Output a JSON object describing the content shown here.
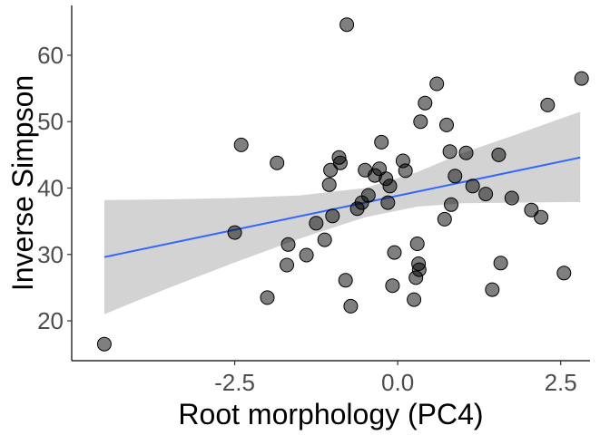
{
  "chart_data": {
    "type": "scatter",
    "title": "",
    "xlabel": "Root morphology (PC4)",
    "ylabel": "Inverse Simpson",
    "xlim": [
      -5.0,
      2.95
    ],
    "ylim": [
      14.0,
      67.5
    ],
    "x_ticks": [
      -2.5,
      0.0,
      2.5
    ],
    "x_tick_labels": [
      "-2.5",
      "0.0",
      "2.5"
    ],
    "y_ticks": [
      20,
      30,
      40,
      50,
      60
    ],
    "y_tick_labels": [
      "20",
      "30",
      "40",
      "50",
      "60"
    ],
    "grid": false,
    "legend": "none",
    "point_color": "#000000",
    "point_opacity": 0.5,
    "trend_line_color": "#3366FF",
    "confidence_band_color": "#D3D3D3",
    "trend_line": {
      "x": [
        -4.5,
        2.8
      ],
      "y": [
        29.6,
        44.6
      ]
    },
    "confidence_band": {
      "x": [
        -4.5,
        -3.5,
        -2.5,
        -1.5,
        -0.5,
        0.3,
        1.0,
        1.8,
        2.8
      ],
      "lower": [
        21.0,
        25.0,
        28.8,
        32.4,
        35.6,
        37.2,
        37.7,
        37.8,
        37.9
      ],
      "upper": [
        38.2,
        38.3,
        38.5,
        38.9,
        40.0,
        42.4,
        45.3,
        48.0,
        51.5
      ]
    },
    "points": [
      {
        "x": -4.5,
        "y": 16.5
      },
      {
        "x": -2.5,
        "y": 33.3
      },
      {
        "x": -2.4,
        "y": 46.5
      },
      {
        "x": -2.0,
        "y": 23.5
      },
      {
        "x": -1.85,
        "y": 43.8
      },
      {
        "x": -1.7,
        "y": 28.4
      },
      {
        "x": -1.68,
        "y": 31.5
      },
      {
        "x": -1.4,
        "y": 29.9
      },
      {
        "x": -1.25,
        "y": 34.7
      },
      {
        "x": -1.12,
        "y": 32.2
      },
      {
        "x": -1.05,
        "y": 40.5
      },
      {
        "x": -1.03,
        "y": 42.7
      },
      {
        "x": -1.0,
        "y": 35.8
      },
      {
        "x": -0.9,
        "y": 44.6
      },
      {
        "x": -0.88,
        "y": 43.8
      },
      {
        "x": -0.8,
        "y": 26.1
      },
      {
        "x": -0.78,
        "y": 64.6
      },
      {
        "x": -0.72,
        "y": 22.2
      },
      {
        "x": -0.62,
        "y": 36.9
      },
      {
        "x": -0.55,
        "y": 37.8
      },
      {
        "x": -0.5,
        "y": 42.7
      },
      {
        "x": -0.45,
        "y": 38.9
      },
      {
        "x": -0.35,
        "y": 41.9
      },
      {
        "x": -0.28,
        "y": 42.9
      },
      {
        "x": -0.25,
        "y": 46.9
      },
      {
        "x": -0.18,
        "y": 41.4
      },
      {
        "x": -0.15,
        "y": 37.8
      },
      {
        "x": -0.12,
        "y": 40.3
      },
      {
        "x": -0.08,
        "y": 25.3
      },
      {
        "x": -0.05,
        "y": 30.3
      },
      {
        "x": 0.08,
        "y": 44.1
      },
      {
        "x": 0.12,
        "y": 42.6
      },
      {
        "x": 0.25,
        "y": 23.2
      },
      {
        "x": 0.28,
        "y": 26.5
      },
      {
        "x": 0.3,
        "y": 31.6
      },
      {
        "x": 0.32,
        "y": 28.6
      },
      {
        "x": 0.33,
        "y": 27.7
      },
      {
        "x": 0.35,
        "y": 50.0
      },
      {
        "x": 0.42,
        "y": 52.8
      },
      {
        "x": 0.6,
        "y": 55.7
      },
      {
        "x": 0.72,
        "y": 35.3
      },
      {
        "x": 0.75,
        "y": 49.5
      },
      {
        "x": 0.8,
        "y": 45.5
      },
      {
        "x": 0.82,
        "y": 37.5
      },
      {
        "x": 0.88,
        "y": 41.8
      },
      {
        "x": 1.05,
        "y": 45.3
      },
      {
        "x": 1.15,
        "y": 40.3
      },
      {
        "x": 1.35,
        "y": 39.1
      },
      {
        "x": 1.45,
        "y": 24.7
      },
      {
        "x": 1.55,
        "y": 45.0
      },
      {
        "x": 1.58,
        "y": 28.7
      },
      {
        "x": 1.75,
        "y": 38.5
      },
      {
        "x": 2.05,
        "y": 36.7
      },
      {
        "x": 2.2,
        "y": 35.6
      },
      {
        "x": 2.3,
        "y": 52.5
      },
      {
        "x": 2.55,
        "y": 27.2
      },
      {
        "x": 2.82,
        "y": 56.5
      }
    ]
  }
}
